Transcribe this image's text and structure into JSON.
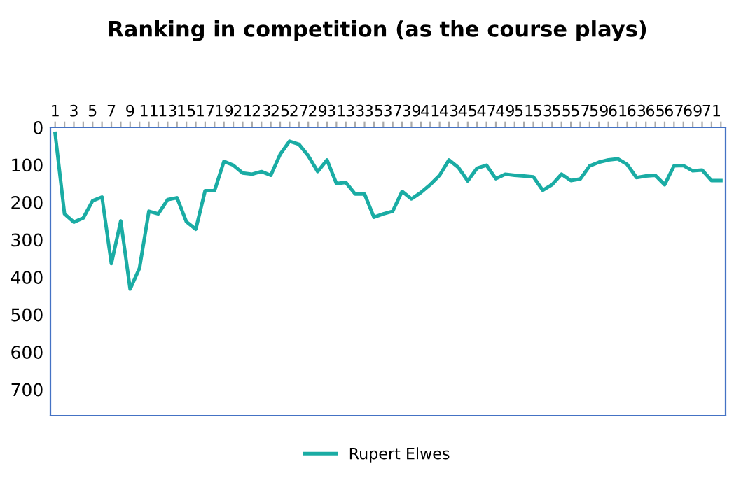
{
  "chart_data": {
    "type": "line",
    "title": "Ranking in competition (as the course plays)",
    "categories": [
      "1",
      null,
      "3",
      null,
      "5",
      null,
      "7",
      null,
      "9",
      null,
      "11",
      null,
      "13",
      null,
      "15",
      null,
      "17",
      null,
      "19",
      null,
      "21",
      null,
      "23",
      null,
      "25",
      null,
      "27",
      null,
      "29",
      null,
      "31",
      null,
      "33",
      null,
      "35",
      null,
      "37",
      null,
      "39",
      null,
      "41",
      null,
      "43",
      null,
      "45",
      null,
      "47",
      null,
      "49",
      null,
      "51",
      null,
      "53",
      null,
      "55",
      null,
      "57",
      null,
      "59",
      null,
      "61",
      null,
      "63",
      null,
      "65",
      null,
      "67",
      null,
      "69",
      null,
      "71",
      null
    ],
    "series": [
      {
        "name": "Rupert Elwes",
        "color": "#1aaca4",
        "values": [
          16,
          231,
          253,
          242,
          196,
          186,
          364,
          250,
          432,
          376,
          224,
          231,
          193,
          188,
          252,
          272,
          169,
          169,
          91,
          101,
          122,
          125,
          118,
          128,
          72,
          37,
          45,
          76,
          118,
          87,
          150,
          147,
          178,
          178,
          240,
          231,
          224,
          171,
          191,
          174,
          153,
          128,
          87,
          107,
          143,
          109,
          101,
          137,
          125,
          128,
          130,
          132,
          168,
          153,
          125,
          142,
          138,
          103,
          93,
          87,
          84,
          99,
          134,
          130,
          128,
          153,
          103,
          102,
          116,
          114,
          142,
          142
        ]
      }
    ],
    "ylim": [
      770,
      0
    ],
    "yticks": [
      0,
      100,
      200,
      300,
      400,
      500,
      600,
      700
    ],
    "grid": false,
    "legend": "bottom",
    "marker": "none",
    "line_style": "solid"
  }
}
